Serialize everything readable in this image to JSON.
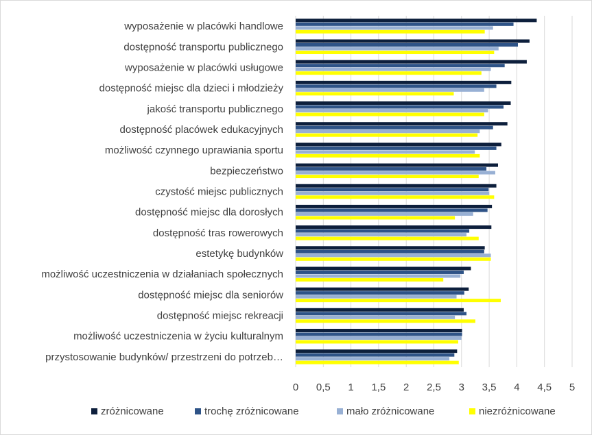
{
  "chart_data": {
    "type": "bar",
    "orientation": "horizontal",
    "categories": [
      "wyposażenie w placówki handlowe",
      "dostępność transportu publicznego",
      "wyposażenie w placówki usługowe",
      "dostępność miejsc dla dzieci i młodzieży",
      "jakość transportu publicznego",
      "dostępność placówek edukacyjnych",
      "możliwość czynnego uprawiania sportu",
      "bezpieczeństwo",
      "czystość miejsc publicznych",
      "dostępność miejsc dla dorosłych",
      "dostępność tras rowerowych",
      "estetykę budynków",
      "możliwość uczestniczenia w działaniach społecznych",
      "dostępność miejsc dla seniorów",
      "dostępność miejsc rekreacji",
      "możliwość uczestniczenia w życiu kulturalnym",
      "przystosowanie budynków/ przestrzeni do potrzeb…"
    ],
    "series": [
      {
        "name": "zróżnicowane",
        "color": "#0d1f3c",
        "values": [
          4.36,
          4.23,
          4.18,
          3.9,
          3.89,
          3.83,
          3.72,
          3.66,
          3.63,
          3.55,
          3.54,
          3.42,
          3.17,
          3.13,
          3.04,
          3.01,
          2.92
        ]
      },
      {
        "name": "trochę zróżnicowane",
        "color": "#2e5387",
        "values": [
          3.94,
          4.02,
          3.78,
          3.63,
          3.76,
          3.57,
          3.63,
          3.45,
          3.49,
          3.47,
          3.14,
          3.41,
          3.04,
          3.05,
          3.09,
          3.01,
          2.87
        ]
      },
      {
        "name": "mało zróżnicowane",
        "color": "#98b0d4",
        "values": [
          3.57,
          3.67,
          3.53,
          3.41,
          3.48,
          3.33,
          3.24,
          3.61,
          3.5,
          3.21,
          3.09,
          3.53,
          2.98,
          2.91,
          2.88,
          3.0,
          2.78
        ]
      },
      {
        "name": "niezróżnicowane",
        "color": "#ffff00",
        "values": [
          3.42,
          3.59,
          3.36,
          2.86,
          3.41,
          3.29,
          3.33,
          3.31,
          3.59,
          2.88,
          3.31,
          3.53,
          2.67,
          3.71,
          3.25,
          2.94,
          2.95
        ]
      }
    ],
    "x_ticks": [
      "0",
      "0,5",
      "1",
      "1,5",
      "2",
      "2,5",
      "3",
      "3,5",
      "4",
      "4,5",
      "5"
    ],
    "xlim": [
      0,
      5
    ],
    "grid": true,
    "legend_position": "bottom"
  }
}
